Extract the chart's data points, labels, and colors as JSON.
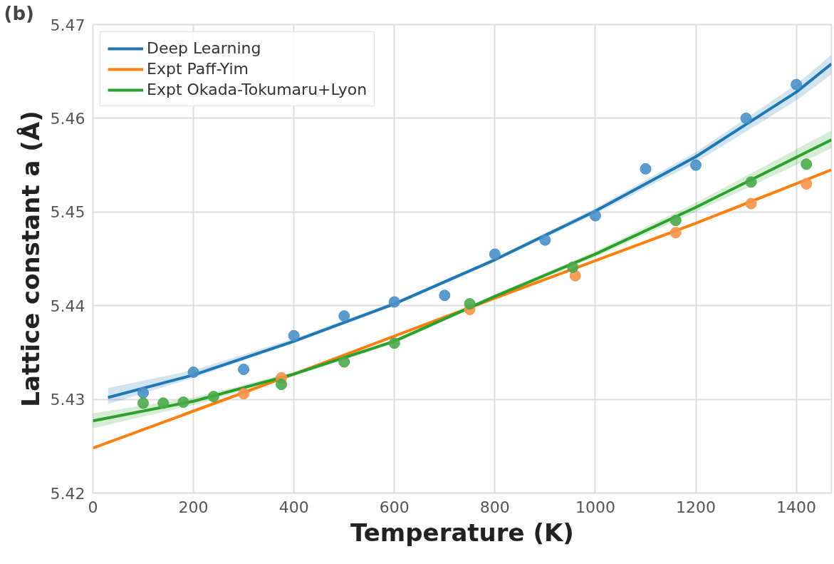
{
  "chart_data": {
    "type": "line",
    "xlabel": "Temperature (K)",
    "ylabel": "Lattice constant a (Å)",
    "annotations": [
      "(b)"
    ],
    "xlim": [
      0,
      1470
    ],
    "ylim": [
      5.42,
      5.47
    ],
    "xticks": [
      0,
      200,
      400,
      600,
      800,
      1000,
      1200,
      1400
    ],
    "yticks": [
      5.42,
      5.43,
      5.44,
      5.45,
      5.46,
      5.47
    ],
    "grid": true,
    "legend": "top left",
    "line_style": "solid",
    "series": [
      {
        "name": "Deep Learning",
        "marker": "none",
        "color": "#1f77b4",
        "x": [
          30,
          200,
          400,
          600,
          800,
          1000,
          1200,
          1400,
          1470
        ],
        "values": [
          5.4302,
          5.4326,
          5.4362,
          5.4402,
          5.4449,
          5.4501,
          5.4559,
          5.4628,
          5.4658
        ],
        "lower": [
          5.4295,
          5.4323,
          5.436,
          5.44,
          5.4447,
          5.4498,
          5.4553,
          5.4619,
          5.4647
        ],
        "upper": [
          5.4312,
          5.4331,
          5.4365,
          5.4404,
          5.4451,
          5.4504,
          5.4564,
          5.4636,
          5.4668
        ]
      },
      {
        "name": "Expt Paff-Yim",
        "marker": "none",
        "color": "#ff7f0e",
        "x": [
          0,
          400,
          800,
          1200,
          1470
        ],
        "values": [
          5.4248,
          5.4327,
          5.4408,
          5.4488,
          5.4545
        ]
      },
      {
        "name": "Expt Okada-Tokumaru+Lyon",
        "marker": "none",
        "color": "#2ca02c",
        "x": [
          0,
          200,
          400,
          600,
          800,
          1000,
          1200,
          1470
        ],
        "values": [
          5.4277,
          5.4298,
          5.4327,
          5.4362,
          5.441,
          5.4455,
          5.4505,
          5.4577
        ],
        "lower": [
          5.4269,
          5.4294,
          5.4325,
          5.436,
          5.4408,
          5.4452,
          5.45,
          5.4568
        ],
        "upper": [
          5.4285,
          5.4302,
          5.4329,
          5.4364,
          5.4412,
          5.4458,
          5.451,
          5.4587
        ]
      },
      {
        "type": "scatter",
        "marker": "circle",
        "color": "#4a90c8",
        "x": [
          100,
          200,
          300,
          400,
          500,
          600,
          700,
          800,
          900,
          1000,
          1100,
          1200,
          1300,
          1400
        ],
        "values": [
          5.4307,
          5.4329,
          5.4332,
          5.4368,
          5.4389,
          5.4404,
          5.4411,
          5.4455,
          5.447,
          5.4496,
          5.4546,
          5.455,
          5.46,
          5.4636
        ]
      },
      {
        "type": "scatter",
        "marker": "circle",
        "color": "#f5954a",
        "x": [
          300,
          375,
          750,
          960,
          1160,
          1310,
          1420
        ],
        "values": [
          5.4306,
          5.4323,
          5.4396,
          5.4432,
          5.4478,
          5.4509,
          5.453
        ]
      },
      {
        "type": "scatter",
        "marker": "circle",
        "color": "#4aab4a",
        "x": [
          100,
          140,
          180,
          240,
          375,
          500,
          600,
          750,
          955,
          1160,
          1310,
          1420
        ],
        "values": [
          5.4296,
          5.4296,
          5.4297,
          5.4303,
          5.4316,
          5.434,
          5.436,
          5.4402,
          5.4441,
          5.4491,
          5.4532,
          5.4551
        ]
      }
    ]
  }
}
